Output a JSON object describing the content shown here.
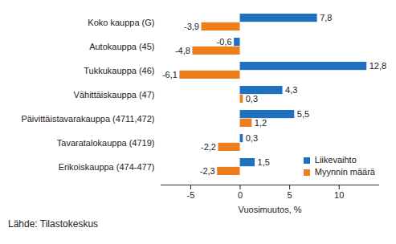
{
  "chart_data": {
    "type": "bar",
    "orientation": "horizontal",
    "categories": [
      "Koko kauppa (G)",
      "Autokauppa (45)",
      "Tukkukauppa (46)",
      "Vähittäiskauppa (47)",
      "Päivittäistavarakauppa (4711,472)",
      "Tavaratalokauppa (4719)",
      "Erikoiskauppa (474-477)"
    ],
    "series": [
      {
        "name": "Liikevaihto",
        "color": "#1f70be",
        "values": [
          7.8,
          -0.6,
          12.8,
          4.3,
          5.5,
          0.3,
          1.5
        ],
        "value_labels": [
          "7,8",
          "-0,6",
          "12,8",
          "4,3",
          "5,5",
          "0,3",
          "1,5"
        ]
      },
      {
        "name": "Myynnin määrä",
        "color": "#ee7d1c",
        "values": [
          -3.9,
          -4.8,
          -6.1,
          0.3,
          1.2,
          -2.2,
          -2.3
        ],
        "value_labels": [
          "-3,9",
          "-4,8",
          "-6,1",
          "0,3",
          "1,2",
          "-2,2",
          "-2,3"
        ]
      }
    ],
    "xlabel": "Vuosimuutos, %",
    "xlim": [
      -8,
      14
    ],
    "xticks": [
      -5,
      0,
      5,
      10
    ],
    "grid": false,
    "legend": "lower right",
    "data_labels": true,
    "caption": "Lähde: Tilastokeskus"
  }
}
